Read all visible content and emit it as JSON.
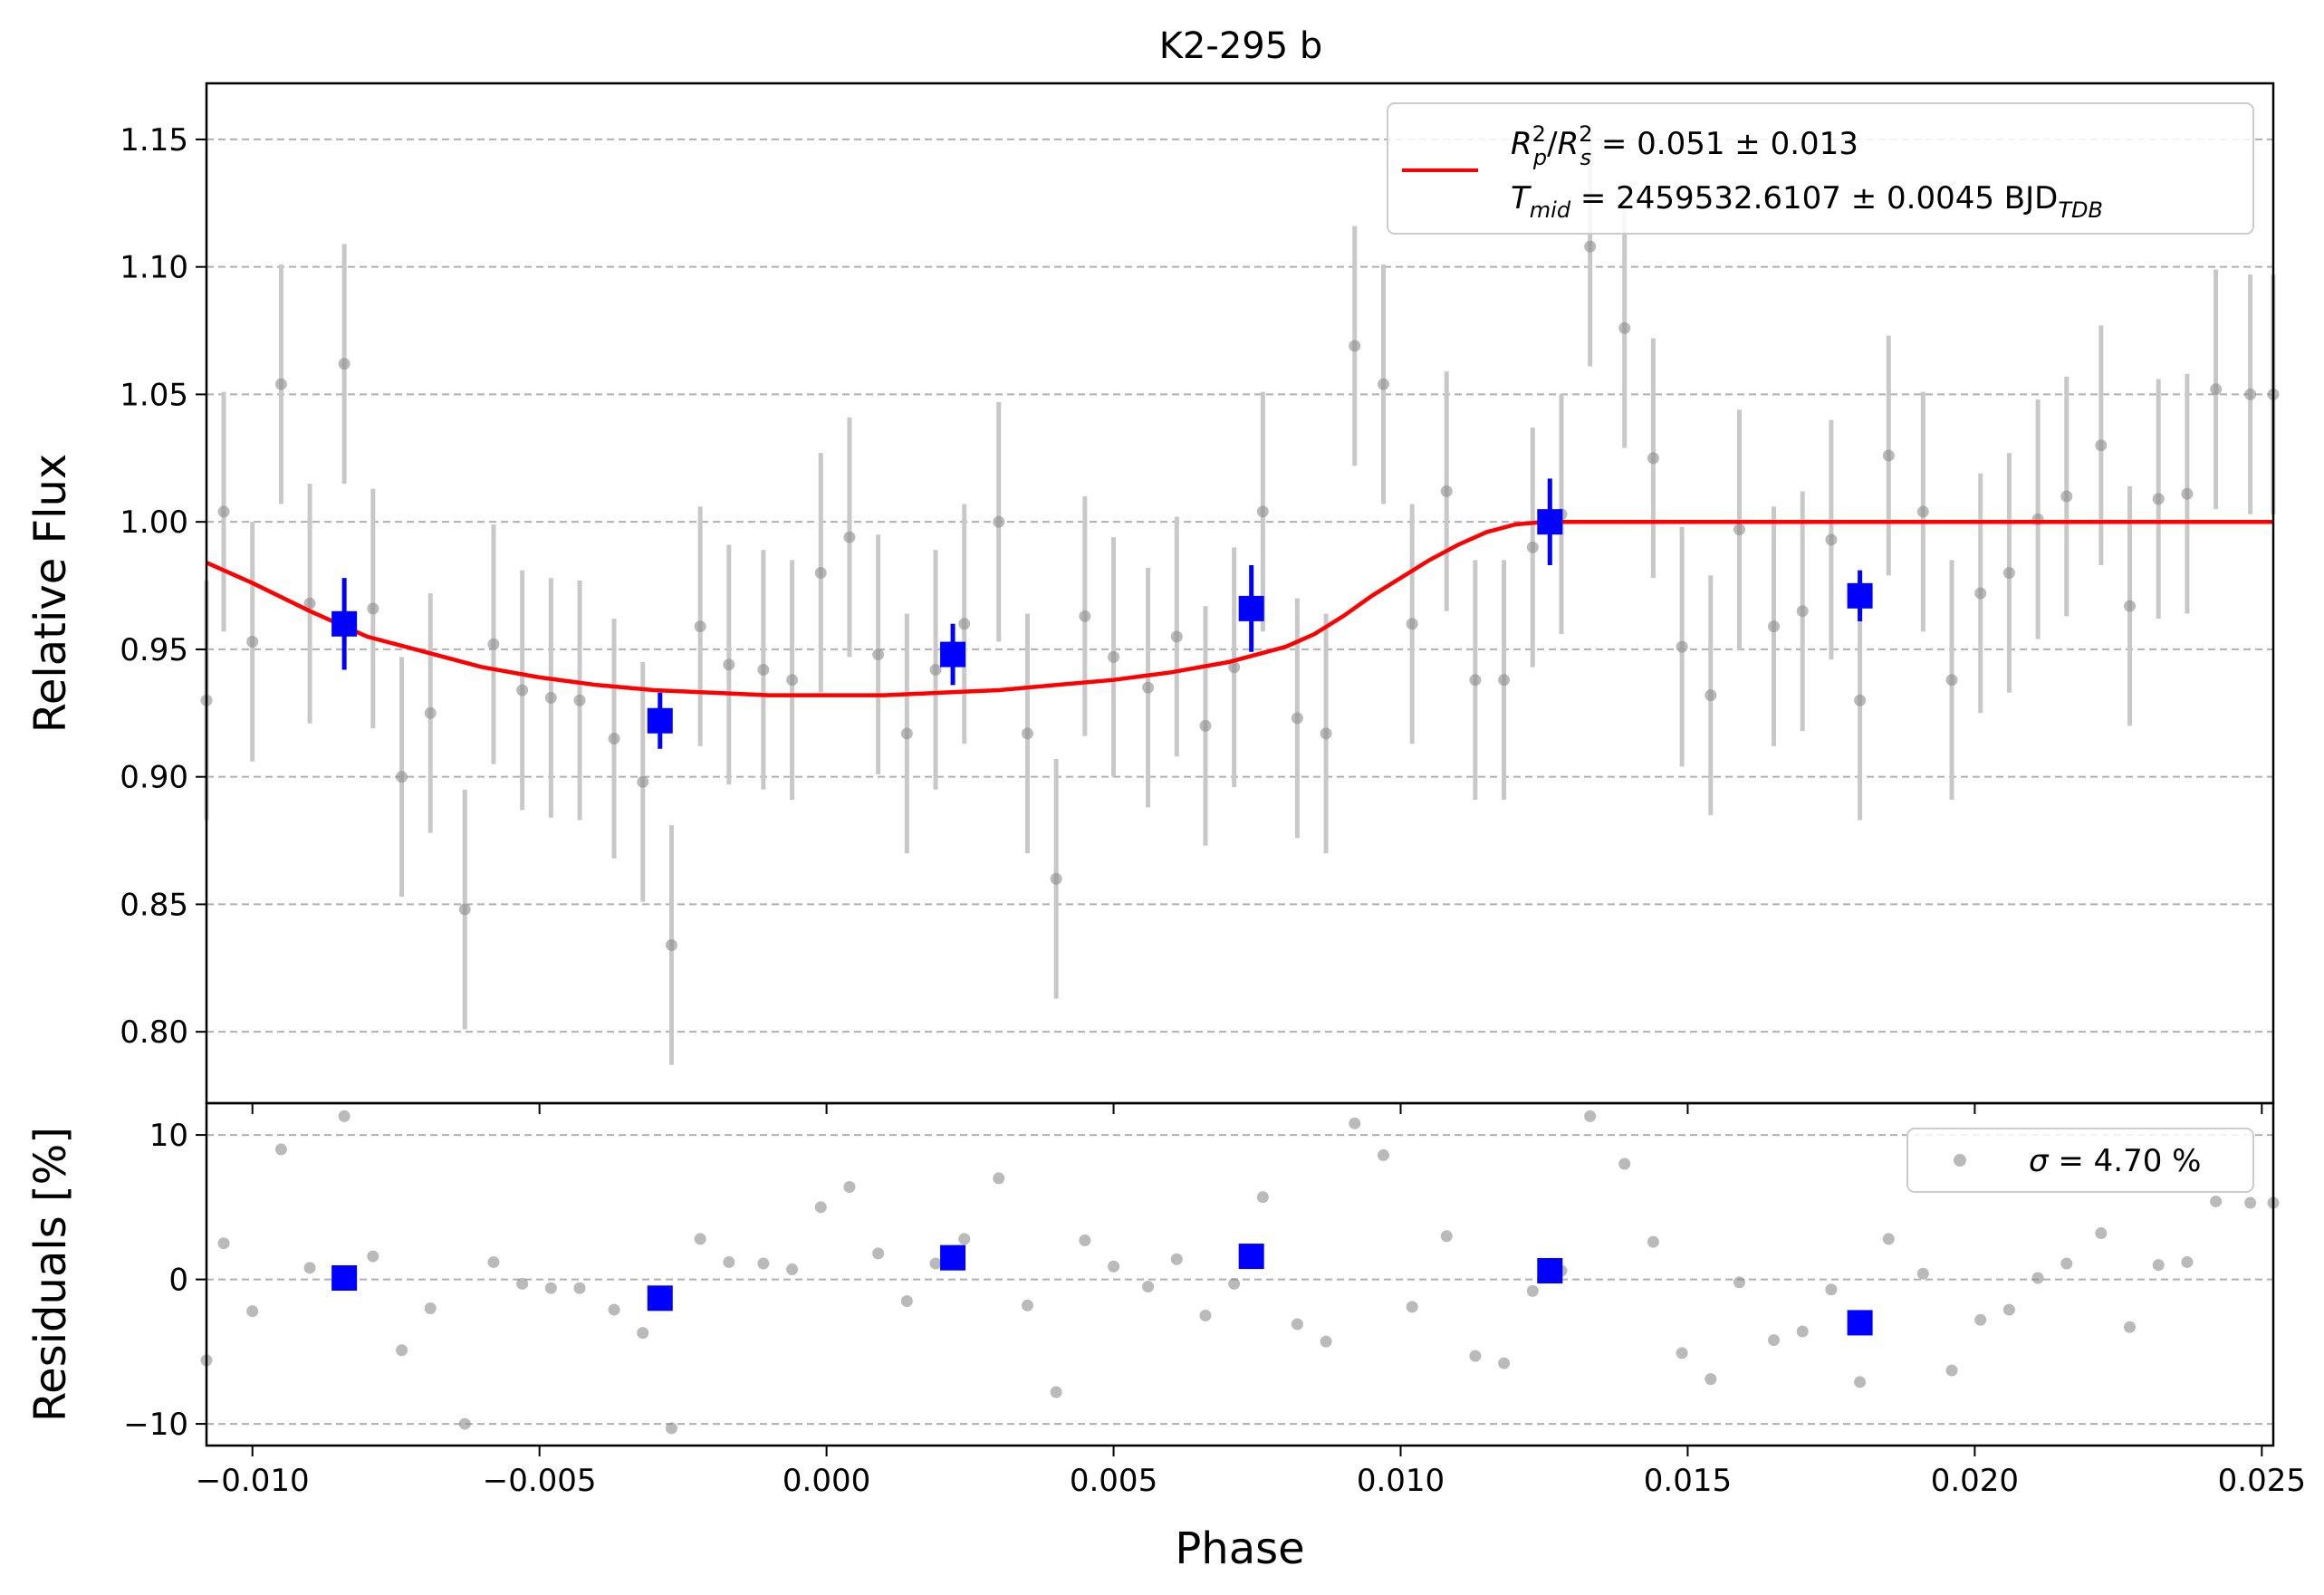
{
  "chart_data": [
    {
      "type": "scatter",
      "title": "K2-295 b",
      "xlabel": "",
      "ylabel": "Relative Flux",
      "xlim": [
        -0.0108,
        0.0252
      ],
      "ylim": [
        0.772,
        1.172
      ],
      "grid": "horizontal-dashed",
      "legend_position": "top-right",
      "x_ticks": [
        -0.01,
        -0.005,
        0.0,
        0.005,
        0.01,
        0.015,
        0.02,
        0.025
      ],
      "y_ticks": [
        0.8,
        0.85,
        0.9,
        0.95,
        1.0,
        1.05,
        1.1,
        1.15
      ],
      "y_tick_labels": [
        "0.80",
        "0.85",
        "0.90",
        "0.95",
        "1.00",
        "1.05",
        "1.10",
        "1.15"
      ],
      "legend": {
        "line1_lhs": "R",
        "line1_sub_p": "p",
        "line1_sup": "2",
        "line1_sub_s": "s",
        "line1_rest": " = 0.051 ± 0.013",
        "line2_lhs": "T",
        "line2_sub": "mid",
        "line2_rest": " = 2459532.6107 ± 0.0045 BJD",
        "line2_unit_sub": "TDB",
        "color": "#ff0000"
      },
      "model": {
        "color": "#ff0000",
        "x": [
          -0.0108,
          -0.01,
          -0.009,
          -0.008,
          -0.007,
          -0.006,
          -0.005,
          -0.004,
          -0.003,
          -0.002,
          -0.001,
          0.0,
          0.001,
          0.002,
          0.003,
          0.004,
          0.005,
          0.006,
          0.007,
          0.008,
          0.0085,
          0.009,
          0.0095,
          0.01,
          0.0105,
          0.011,
          0.0115,
          0.012,
          0.0125,
          0.013,
          0.0252
        ],
        "y": [
          0.984,
          0.976,
          0.965,
          0.955,
          0.949,
          0.943,
          0.939,
          0.936,
          0.934,
          0.933,
          0.932,
          0.932,
          0.932,
          0.933,
          0.934,
          0.936,
          0.938,
          0.941,
          0.945,
          0.951,
          0.956,
          0.963,
          0.971,
          0.978,
          0.985,
          0.991,
          0.996,
          0.999,
          1.0,
          1.0,
          1.0
        ]
      },
      "series": [
        {
          "color": "#8c8c8c",
          "errorbar_color": "#c8c8c8",
          "x": [
            -0.0108,
            -0.0105,
            -0.01,
            -0.0095,
            -0.009,
            -0.0084,
            -0.0079,
            -0.0074,
            -0.0069,
            -0.0063,
            -0.0058,
            -0.0053,
            -0.0048,
            -0.0043,
            -0.0037,
            -0.0032,
            -0.0027,
            -0.0022,
            -0.0017,
            -0.0011,
            -0.0006,
            -0.0001,
            0.0004,
            0.0009,
            0.0014,
            0.0019,
            0.0024,
            0.003,
            0.0035,
            0.004,
            0.0045,
            0.005,
            0.0056,
            0.0061,
            0.0066,
            0.0071,
            0.0076,
            0.0082,
            0.0087,
            0.0092,
            0.0097,
            0.0102,
            0.0108,
            0.0113,
            0.0118,
            0.0123,
            0.0128,
            0.0133,
            0.0139,
            0.0144,
            0.0149,
            0.0154,
            0.0159,
            0.0165,
            0.017,
            0.0175,
            0.018,
            0.0185,
            0.0191,
            0.0196,
            0.0201,
            0.0206,
            0.0211,
            0.0216,
            0.0222,
            0.0227,
            0.0232,
            0.0237,
            0.0242,
            0.0248,
            0.0252
          ],
          "y": [
            0.93,
            1.004,
            0.953,
            1.054,
            0.968,
            1.062,
            0.966,
            0.9,
            0.925,
            0.848,
            0.952,
            0.934,
            0.931,
            0.93,
            0.915,
            0.898,
            0.834,
            0.959,
            0.944,
            0.942,
            0.938,
            0.98,
            0.994,
            0.948,
            0.917,
            0.942,
            0.96,
            1.0,
            0.917,
            0.86,
            0.963,
            0.947,
            0.935,
            0.955,
            0.92,
            0.943,
            1.004,
            0.923,
            0.917,
            1.069,
            1.054,
            0.96,
            1.012,
            0.938,
            0.938,
            0.99,
            1.003,
            1.108,
            1.076,
            1.025,
            0.951,
            0.932,
            0.997,
            0.959,
            0.965,
            0.993,
            0.93,
            1.026,
            1.004,
            0.938,
            0.972,
            0.98,
            1.001,
            1.01,
            1.03,
            0.967,
            1.009,
            1.011,
            1.052,
            1.05,
            1.05
          ],
          "yerr": [
            0.047,
            0.047,
            0.047,
            0.047,
            0.047,
            0.047,
            0.047,
            0.047,
            0.047,
            0.047,
            0.047,
            0.047,
            0.047,
            0.047,
            0.047,
            0.047,
            0.047,
            0.047,
            0.047,
            0.047,
            0.047,
            0.047,
            0.047,
            0.047,
            0.047,
            0.047,
            0.047,
            0.047,
            0.047,
            0.047,
            0.047,
            0.047,
            0.047,
            0.047,
            0.047,
            0.047,
            0.047,
            0.047,
            0.047,
            0.047,
            0.047,
            0.047,
            0.047,
            0.047,
            0.047,
            0.047,
            0.047,
            0.047,
            0.047,
            0.047,
            0.047,
            0.047,
            0.047,
            0.047,
            0.047,
            0.047,
            0.047,
            0.047,
            0.047,
            0.047,
            0.047,
            0.047,
            0.047,
            0.047,
            0.047,
            0.047,
            0.047,
            0.047,
            0.047,
            0.047,
            0.047
          ]
        },
        {
          "color": "#0000ff",
          "x": [
            -0.0084,
            -0.0029,
            0.0022,
            0.0074,
            0.0126,
            0.018
          ],
          "y": [
            0.96,
            0.922,
            0.948,
            0.966,
            1.0,
            0.971
          ],
          "yerr": [
            0.018,
            0.011,
            0.012,
            0.017,
            0.017,
            0.01
          ]
        }
      ]
    },
    {
      "type": "scatter",
      "title": "",
      "xlabel": "Phase",
      "ylabel": "Residuals [%]",
      "xlim": [
        -0.0108,
        0.0252
      ],
      "ylim": [
        -11.5,
        12.2
      ],
      "grid": "horizontal-dashed",
      "legend_position": "top-right",
      "x_ticks": [
        -0.01,
        -0.005,
        0.0,
        0.005,
        0.01,
        0.015,
        0.02,
        0.025
      ],
      "x_tick_labels": [
        "−0.010",
        "−0.005",
        "0.000",
        "0.005",
        "0.010",
        "0.015",
        "0.020",
        "0.025"
      ],
      "y_ticks": [
        -10,
        0,
        10
      ],
      "y_tick_labels": [
        "−10",
        "0",
        "10"
      ],
      "legend": {
        "sigma_symbol": "σ",
        "rest": " = 4.70 %"
      },
      "series": [
        {
          "color": "#8c8c8c",
          "x": [
            -0.0108,
            -0.0105,
            -0.01,
            -0.0095,
            -0.009,
            -0.0084,
            -0.0079,
            -0.0074,
            -0.0069,
            -0.0063,
            -0.0058,
            -0.0053,
            -0.0048,
            -0.0043,
            -0.0037,
            -0.0032,
            -0.0027,
            -0.0022,
            -0.0017,
            -0.0011,
            -0.0006,
            -0.0001,
            0.0004,
            0.0009,
            0.0014,
            0.0019,
            0.0024,
            0.003,
            0.0035,
            0.004,
            0.0045,
            0.005,
            0.0056,
            0.0061,
            0.0066,
            0.0071,
            0.0076,
            0.0082,
            0.0087,
            0.0092,
            0.0097,
            0.0102,
            0.0108,
            0.0113,
            0.0118,
            0.0123,
            0.0128,
            0.0133,
            0.0139,
            0.0144,
            0.0149,
            0.0154,
            0.0159,
            0.0165,
            0.017,
            0.0175,
            0.018,
            0.0185,
            0.0191,
            0.0196,
            0.0201,
            0.0206,
            0.0211,
            0.0216,
            0.0222,
            0.0227,
            0.0232,
            0.0237,
            0.0242,
            0.0248,
            0.0252
          ],
          "y": [
            -5.6,
            2.5,
            -2.2,
            9.0,
            0.8,
            11.3,
            1.6,
            -4.9,
            -2.0,
            -10.0,
            1.2,
            -0.3,
            -0.6,
            -0.6,
            -2.1,
            -3.7,
            -10.3,
            2.8,
            1.2,
            1.1,
            0.7,
            5.0,
            6.4,
            1.8,
            -1.5,
            1.1,
            2.8,
            7.0,
            -1.8,
            -7.8,
            2.7,
            0.9,
            -0.5,
            1.4,
            -2.5,
            -0.3,
            5.7,
            -3.1,
            -4.3,
            10.8,
            8.6,
            -1.9,
            3.0,
            -5.3,
            -5.8,
            -0.8,
            0.6,
            11.3,
            8.0,
            2.6,
            -5.1,
            -6.9,
            -0.2,
            -4.2,
            -3.6,
            -0.7,
            -7.1,
            2.8,
            0.4,
            -6.3,
            -2.8,
            -2.1,
            0.1,
            1.1,
            3.2,
            -3.3,
            1.0,
            1.2,
            5.4,
            5.3,
            5.3
          ]
        },
        {
          "color": "#0000ff",
          "x": [
            -0.0084,
            -0.0029,
            0.0022,
            0.0074,
            0.0126,
            0.018
          ],
          "y": [
            0.1,
            -1.3,
            1.5,
            1.6,
            0.6,
            -3.0
          ]
        }
      ]
    }
  ]
}
